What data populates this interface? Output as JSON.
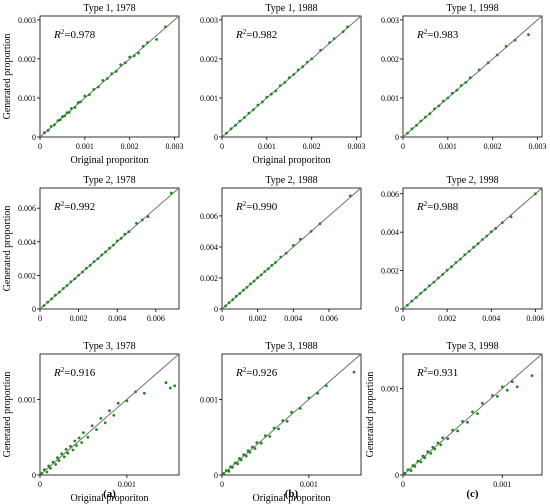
{
  "figure": {
    "panel_letters": [
      "(a)",
      "(b)",
      "(c)"
    ]
  },
  "colors": {
    "points": "#1e8a1e",
    "diagonal": "#6f6f6f",
    "axis": "#000000"
  },
  "chart_data": [
    {
      "type": "scatter",
      "title": "Type 1, 1978",
      "r2_label": "=0.978",
      "xlabel": "Original proporiton",
      "ylabel": "Generated proportion",
      "xlim": [
        0,
        0.0031
      ],
      "ylim": [
        0,
        0.0031
      ],
      "xticks": [
        0,
        0.001,
        0.002,
        0.003
      ],
      "xticklabels": [
        "0",
        "0.001",
        "0.002",
        "0.003"
      ],
      "yticks": [
        0,
        0.001,
        0.002,
        0.003
      ],
      "yticklabels": [
        "0",
        "0.001",
        "0.002",
        "0.003"
      ],
      "diagonal": true,
      "points": [
        [
          0.0001,
          0.00011
        ],
        [
          0.00018,
          0.00017
        ],
        [
          0.00025,
          0.00027
        ],
        [
          0.00032,
          0.00031
        ],
        [
          0.0004,
          0.00042
        ],
        [
          0.00045,
          0.00044
        ],
        [
          0.0005,
          0.00052
        ],
        [
          0.00055,
          0.00054
        ],
        [
          0.0006,
          0.00062
        ],
        [
          0.00065,
          0.00063
        ],
        [
          0.0007,
          0.00073
        ],
        [
          0.00078,
          0.00076
        ],
        [
          0.00085,
          0.00088
        ],
        [
          0.0009,
          0.0009
        ],
        [
          0.001,
          0.00105
        ],
        [
          0.0011,
          0.00108
        ],
        [
          0.0012,
          0.00122
        ],
        [
          0.0013,
          0.00128
        ],
        [
          0.0014,
          0.00145
        ],
        [
          0.0015,
          0.0015
        ],
        [
          0.0016,
          0.00162
        ],
        [
          0.0017,
          0.00168
        ],
        [
          0.0018,
          0.00185
        ],
        [
          0.0019,
          0.0019
        ],
        [
          0.002,
          0.00205
        ],
        [
          0.0021,
          0.00208
        ],
        [
          0.0022,
          0.00215
        ],
        [
          0.0023,
          0.00232
        ],
        [
          0.0024,
          0.00242
        ],
        [
          0.0026,
          0.0025
        ],
        [
          0.0028,
          0.00282
        ]
      ]
    },
    {
      "type": "scatter",
      "title": "Type 1, 1988",
      "r2_label": "=0.982",
      "xlabel": "Original proporiton",
      "ylabel": "",
      "xlim": [
        0,
        0.0031
      ],
      "ylim": [
        0,
        0.0031
      ],
      "xticks": [
        0,
        0.001,
        0.002,
        0.003
      ],
      "xticklabels": [
        "0",
        "0.001",
        "0.002",
        "0.003"
      ],
      "yticks": [
        0,
        0.001,
        0.002,
        0.003
      ],
      "yticklabels": [
        "0",
        "0.001",
        "0.002",
        "0.003"
      ],
      "diagonal": true,
      "points": [
        [
          0.0001,
          0.0001
        ],
        [
          0.0002,
          0.00021
        ],
        [
          0.0003,
          0.0003
        ],
        [
          0.0004,
          0.00041
        ],
        [
          0.0005,
          0.0005
        ],
        [
          0.0006,
          0.00061
        ],
        [
          0.0007,
          0.0007
        ],
        [
          0.0008,
          0.00082
        ],
        [
          0.0009,
          0.0009
        ],
        [
          0.001,
          0.00102
        ],
        [
          0.0011,
          0.0011
        ],
        [
          0.0012,
          0.00118
        ],
        [
          0.0013,
          0.00132
        ],
        [
          0.0014,
          0.0014
        ],
        [
          0.0015,
          0.00152
        ],
        [
          0.0016,
          0.0016
        ],
        [
          0.0017,
          0.00172
        ],
        [
          0.0018,
          0.0018
        ],
        [
          0.0019,
          0.00192
        ],
        [
          0.002,
          0.002
        ],
        [
          0.0022,
          0.00222
        ],
        [
          0.0024,
          0.00242
        ],
        [
          0.0025,
          0.00252
        ],
        [
          0.0027,
          0.0027
        ],
        [
          0.0028,
          0.00282
        ]
      ]
    },
    {
      "type": "scatter",
      "title": "Type 1, 1998",
      "r2_label": "=0.983",
      "xlabel": "",
      "ylabel": "",
      "xlim": [
        0,
        0.0031
      ],
      "ylim": [
        0,
        0.0031
      ],
      "xticks": [
        0,
        0.001,
        0.002,
        0.003
      ],
      "xticklabels": [
        "0",
        "0.001",
        "0.002",
        "0.003"
      ],
      "yticks": [
        0,
        0.001,
        0.002,
        0.003
      ],
      "yticklabels": [
        "0",
        "0.001",
        "0.002",
        "0.003"
      ],
      "diagonal": true,
      "points": [
        [
          0.0001,
          0.0001
        ],
        [
          0.0002,
          0.00021
        ],
        [
          0.0003,
          0.0003
        ],
        [
          0.0004,
          0.00041
        ],
        [
          0.0005,
          0.00051
        ],
        [
          0.0006,
          0.0006
        ],
        [
          0.0007,
          0.00072
        ],
        [
          0.0008,
          0.0008
        ],
        [
          0.0009,
          0.00092
        ],
        [
          0.001,
          0.001
        ],
        [
          0.0011,
          0.00112
        ],
        [
          0.0012,
          0.0012
        ],
        [
          0.0013,
          0.00132
        ],
        [
          0.0014,
          0.0014
        ],
        [
          0.0015,
          0.00152
        ],
        [
          0.0017,
          0.00172
        ],
        [
          0.0019,
          0.0019
        ],
        [
          0.0021,
          0.0021
        ],
        [
          0.0023,
          0.00232
        ],
        [
          0.0025,
          0.00248
        ],
        [
          0.0028,
          0.00262
        ]
      ]
    },
    {
      "type": "scatter",
      "title": "Type 2, 1978",
      "r2_label": "=0.992",
      "xlabel": "",
      "ylabel": "Generated proportion",
      "xlim": [
        0,
        0.0072
      ],
      "ylim": [
        0,
        0.0072
      ],
      "xticks": [
        0,
        0.002,
        0.004,
        0.006
      ],
      "xticklabels": [
        "0",
        "0.002",
        "0.004",
        "0.006"
      ],
      "yticks": [
        0,
        0.002,
        0.004,
        0.006
      ],
      "yticklabels": [
        "0",
        "0.002",
        "0.004",
        "0.006"
      ],
      "diagonal": true,
      "points": [
        [
          0.0002,
          0.0002
        ],
        [
          0.0004,
          0.00041
        ],
        [
          0.0006,
          0.0006
        ],
        [
          0.0008,
          0.00082
        ],
        [
          0.001,
          0.001
        ],
        [
          0.0012,
          0.00122
        ],
        [
          0.0014,
          0.0014
        ],
        [
          0.0016,
          0.00162
        ],
        [
          0.0018,
          0.0018
        ],
        [
          0.002,
          0.00202
        ],
        [
          0.0022,
          0.0022
        ],
        [
          0.0024,
          0.00242
        ],
        [
          0.0026,
          0.0026
        ],
        [
          0.0028,
          0.00282
        ],
        [
          0.003,
          0.003
        ],
        [
          0.0032,
          0.00322
        ],
        [
          0.0034,
          0.0034
        ],
        [
          0.0036,
          0.00362
        ],
        [
          0.0038,
          0.0038
        ],
        [
          0.004,
          0.00405
        ],
        [
          0.0042,
          0.0042
        ],
        [
          0.0044,
          0.00445
        ],
        [
          0.0046,
          0.0046
        ],
        [
          0.005,
          0.0051
        ],
        [
          0.0053,
          0.0053
        ],
        [
          0.0056,
          0.0055
        ],
        [
          0.0068,
          0.0069
        ]
      ]
    },
    {
      "type": "scatter",
      "title": "Type 2, 1988",
      "r2_label": "=0.990",
      "xlabel": "",
      "ylabel": "",
      "xlim": [
        0,
        0.0078
      ],
      "ylim": [
        0,
        0.0078
      ],
      "xticks": [
        0,
        0.002,
        0.004,
        0.006
      ],
      "xticklabels": [
        "0",
        "0.002",
        "0.004",
        "0.006"
      ],
      "yticks": [
        0,
        0.002,
        0.004,
        0.006
      ],
      "yticklabels": [
        "0",
        "0.002",
        "0.004",
        "0.006"
      ],
      "diagonal": true,
      "points": [
        [
          0.0002,
          0.0002
        ],
        [
          0.0004,
          0.00041
        ],
        [
          0.0006,
          0.0006
        ],
        [
          0.0008,
          0.00082
        ],
        [
          0.001,
          0.001
        ],
        [
          0.0012,
          0.00122
        ],
        [
          0.0014,
          0.0014
        ],
        [
          0.0016,
          0.00162
        ],
        [
          0.0018,
          0.0018
        ],
        [
          0.002,
          0.00202
        ],
        [
          0.0022,
          0.0022
        ],
        [
          0.0024,
          0.00242
        ],
        [
          0.0026,
          0.0026
        ],
        [
          0.0028,
          0.00282
        ],
        [
          0.003,
          0.003
        ],
        [
          0.0033,
          0.00335
        ],
        [
          0.0036,
          0.0036
        ],
        [
          0.004,
          0.0041
        ],
        [
          0.0044,
          0.0045
        ],
        [
          0.005,
          0.005
        ],
        [
          0.0055,
          0.0055
        ],
        [
          0.0072,
          0.0073
        ]
      ]
    },
    {
      "type": "scatter",
      "title": "Type 2, 1998",
      "r2_label": "=0.988",
      "xlabel": "",
      "ylabel": "",
      "xlim": [
        0,
        0.0063
      ],
      "ylim": [
        0,
        0.0063
      ],
      "xticks": [
        0,
        0.002,
        0.004,
        0.006
      ],
      "xticklabels": [
        "0",
        "0.002",
        "0.004",
        "0.006"
      ],
      "yticks": [
        0,
        0.002,
        0.004,
        0.006
      ],
      "yticklabels": [
        "0",
        "0.002",
        "0.004",
        "0.006"
      ],
      "diagonal": true,
      "points": [
        [
          0.0002,
          0.0002
        ],
        [
          0.0004,
          0.00041
        ],
        [
          0.0006,
          0.0006
        ],
        [
          0.0008,
          0.00082
        ],
        [
          0.001,
          0.001
        ],
        [
          0.0012,
          0.00122
        ],
        [
          0.0014,
          0.0014
        ],
        [
          0.0016,
          0.00162
        ],
        [
          0.0018,
          0.0018
        ],
        [
          0.002,
          0.00202
        ],
        [
          0.0022,
          0.0022
        ],
        [
          0.0024,
          0.00242
        ],
        [
          0.0026,
          0.0026
        ],
        [
          0.0028,
          0.00282
        ],
        [
          0.003,
          0.003
        ],
        [
          0.0032,
          0.00322
        ],
        [
          0.0034,
          0.0034
        ],
        [
          0.0036,
          0.00362
        ],
        [
          0.0038,
          0.0038
        ],
        [
          0.004,
          0.00402
        ],
        [
          0.0042,
          0.0042
        ],
        [
          0.0045,
          0.0045
        ],
        [
          0.0049,
          0.0048
        ],
        [
          0.006,
          0.006
        ]
      ]
    },
    {
      "type": "scatter",
      "title": "Type 3, 1978",
      "r2_label": "=0.916",
      "xlabel": "Original proporiton",
      "ylabel": "Generated proportion",
      "xlim": [
        0,
        0.0016
      ],
      "ylim": [
        0,
        0.0016
      ],
      "xticks": [
        0,
        0.001
      ],
      "xticklabels": [
        "0",
        "0.001"
      ],
      "yticks": [
        0,
        0.001
      ],
      "yticklabels": [
        "0",
        "0.001"
      ],
      "diagonal": true,
      "points": [
        [
          2e-05,
          2e-05
        ],
        [
          5e-05,
          7e-05
        ],
        [
          8e-05,
          4e-05
        ],
        [
          0.0001,
          0.00012
        ],
        [
          0.00012,
          9e-05
        ],
        [
          0.00015,
          0.00017
        ],
        [
          0.00018,
          0.00014
        ],
        [
          0.0002,
          0.00023
        ],
        [
          0.00022,
          0.00019
        ],
        [
          0.00025,
          0.00028
        ],
        [
          0.00028,
          0.00024
        ],
        [
          0.0003,
          0.00034
        ],
        [
          0.00032,
          0.00029
        ],
        [
          0.00035,
          0.00038
        ],
        [
          0.00038,
          0.00033
        ],
        [
          0.0004,
          0.00045
        ],
        [
          0.00042,
          0.00039
        ],
        [
          0.00045,
          0.00049
        ],
        [
          0.00048,
          0.00043
        ],
        [
          0.0005,
          0.00056
        ],
        [
          0.00055,
          0.0005
        ],
        [
          0.0006,
          0.00065
        ],
        [
          0.00065,
          0.0006
        ],
        [
          0.0007,
          0.00075
        ],
        [
          0.00075,
          0.00069
        ],
        [
          0.0008,
          0.00085
        ],
        [
          0.00085,
          0.00079
        ],
        [
          0.0009,
          0.00095
        ],
        [
          0.001,
          0.00098
        ],
        [
          0.0011,
          0.0011
        ],
        [
          0.0012,
          0.00108
        ],
        [
          0.00145,
          0.00122
        ],
        [
          0.0015,
          0.00115
        ],
        [
          0.00155,
          0.00118
        ]
      ]
    },
    {
      "type": "scatter",
      "title": "Type 3, 1988",
      "r2_label": "=0.926",
      "xlabel": "Original proporiton",
      "ylabel": "",
      "xlim": [
        0,
        0.0016
      ],
      "ylim": [
        0,
        0.0016
      ],
      "xticks": [
        0,
        0.001
      ],
      "xticklabels": [
        "0",
        "0.001"
      ],
      "yticks": [
        0,
        0.001
      ],
      "yticklabels": [
        "0",
        "0.001"
      ],
      "diagonal": true,
      "points": [
        [
          2e-05,
          2e-05
        ],
        [
          5e-05,
          6e-05
        ],
        [
          8e-05,
          5e-05
        ],
        [
          0.0001,
          0.00011
        ],
        [
          0.00012,
          0.0001
        ],
        [
          0.00015,
          0.00016
        ],
        [
          0.00018,
          0.00015
        ],
        [
          0.0002,
          0.00022
        ],
        [
          0.00022,
          0.0002
        ],
        [
          0.00025,
          0.00027
        ],
        [
          0.00028,
          0.00025
        ],
        [
          0.0003,
          0.00032
        ],
        [
          0.00032,
          0.0003
        ],
        [
          0.00035,
          0.00037
        ],
        [
          0.00038,
          0.00035
        ],
        [
          0.0004,
          0.00043
        ],
        [
          0.00045,
          0.00042
        ],
        [
          0.0005,
          0.00052
        ],
        [
          0.00055,
          0.00051
        ],
        [
          0.0006,
          0.00062
        ],
        [
          0.00065,
          0.00061
        ],
        [
          0.0007,
          0.00072
        ],
        [
          0.00075,
          0.00071
        ],
        [
          0.0008,
          0.00083
        ],
        [
          0.0009,
          0.00088
        ],
        [
          0.001,
          0.00102
        ],
        [
          0.0011,
          0.00108
        ],
        [
          0.0012,
          0.00118
        ],
        [
          0.00152,
          0.00136
        ]
      ]
    },
    {
      "type": "scatter",
      "title": "Type 3, 1998",
      "r2_label": "=0.931",
      "xlabel": "",
      "ylabel": "Generated proportion",
      "xlim": [
        0,
        0.0014
      ],
      "ylim": [
        0,
        0.0014
      ],
      "xticks": [
        0,
        0.001
      ],
      "xticklabels": [
        "0",
        "0.001"
      ],
      "yticks": [
        0,
        0.001
      ],
      "yticklabels": [
        "0",
        "0.001"
      ],
      "diagonal": true,
      "points": [
        [
          2e-05,
          2e-05
        ],
        [
          5e-05,
          6e-05
        ],
        [
          8e-05,
          5e-05
        ],
        [
          0.0001,
          0.00011
        ],
        [
          0.00012,
          0.0001
        ],
        [
          0.00015,
          0.00016
        ],
        [
          0.00018,
          0.00015
        ],
        [
          0.0002,
          0.00022
        ],
        [
          0.00022,
          0.0002
        ],
        [
          0.00025,
          0.00027
        ],
        [
          0.00028,
          0.00025
        ],
        [
          0.0003,
          0.00032
        ],
        [
          0.00032,
          0.0003
        ],
        [
          0.00035,
          0.00037
        ],
        [
          0.00038,
          0.00035
        ],
        [
          0.0004,
          0.00043
        ],
        [
          0.00045,
          0.00042
        ],
        [
          0.0005,
          0.00052
        ],
        [
          0.00055,
          0.00051
        ],
        [
          0.0006,
          0.00062
        ],
        [
          0.00065,
          0.00061
        ],
        [
          0.0007,
          0.00073
        ],
        [
          0.00075,
          0.00071
        ],
        [
          0.0008,
          0.00083
        ],
        [
          0.0009,
          0.00092
        ],
        [
          0.00095,
          0.00091
        ],
        [
          0.001,
          0.00102
        ],
        [
          0.00105,
          0.00098
        ],
        [
          0.0011,
          0.00108
        ],
        [
          0.00115,
          0.00102
        ],
        [
          0.0013,
          0.00115
        ]
      ]
    }
  ]
}
